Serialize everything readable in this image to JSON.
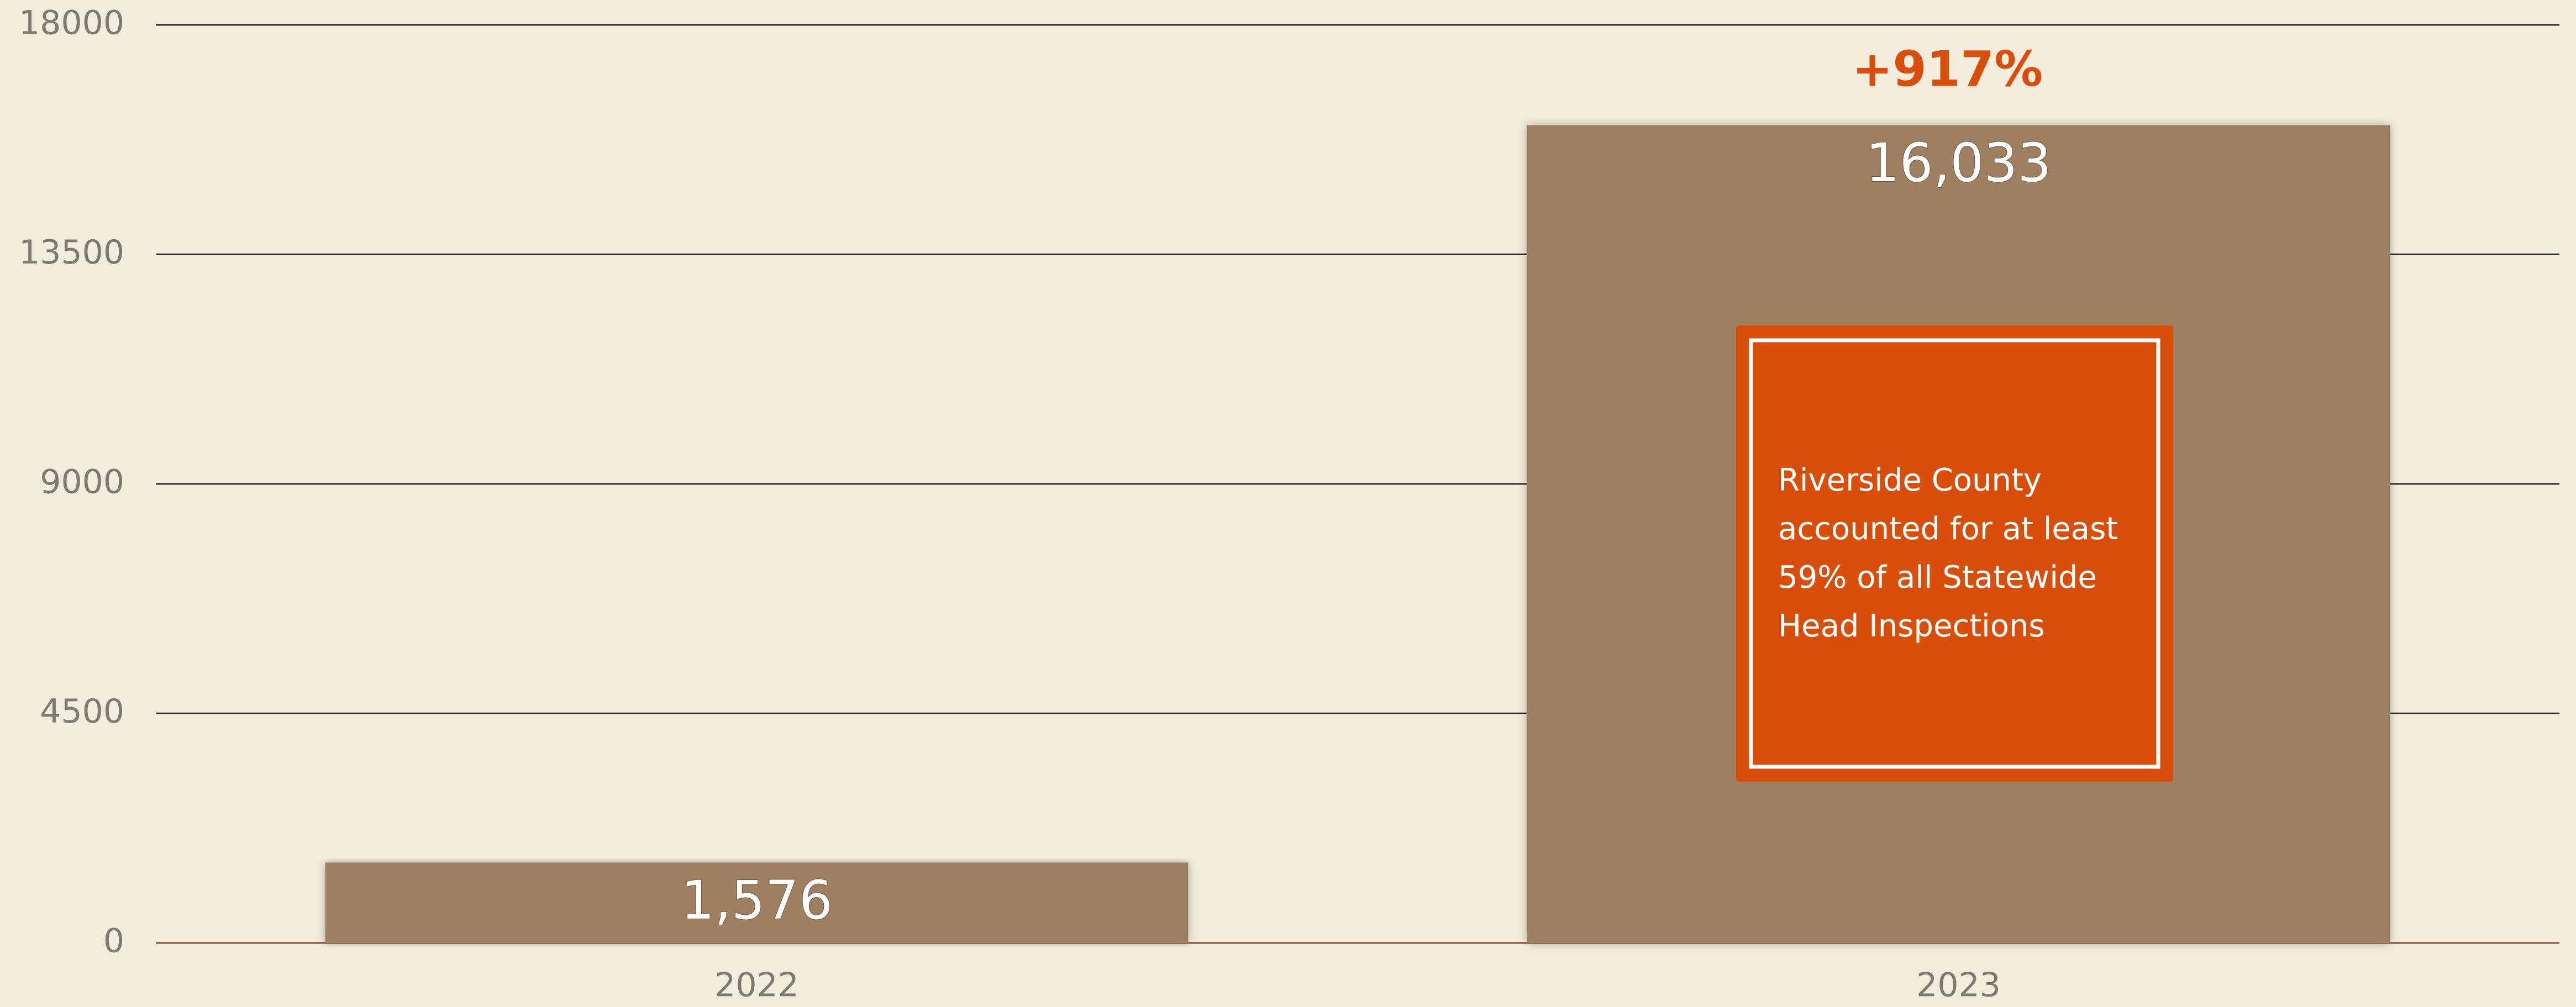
{
  "chart_data": {
    "type": "bar",
    "categories": [
      "2022",
      "2023"
    ],
    "values": [
      1576,
      16033
    ],
    "value_labels": [
      "1,576",
      "16,033"
    ],
    "color": "#9e7f60",
    "ylim": [
      0,
      18000
    ],
    "yticks": [
      0,
      4500,
      9000,
      13500,
      18000
    ],
    "grid": true,
    "change_label": "+917%",
    "callout_lines": [
      "Riverside County",
      "accounted for at least",
      "59% of all Statewide",
      "Head Inspections"
    ]
  }
}
